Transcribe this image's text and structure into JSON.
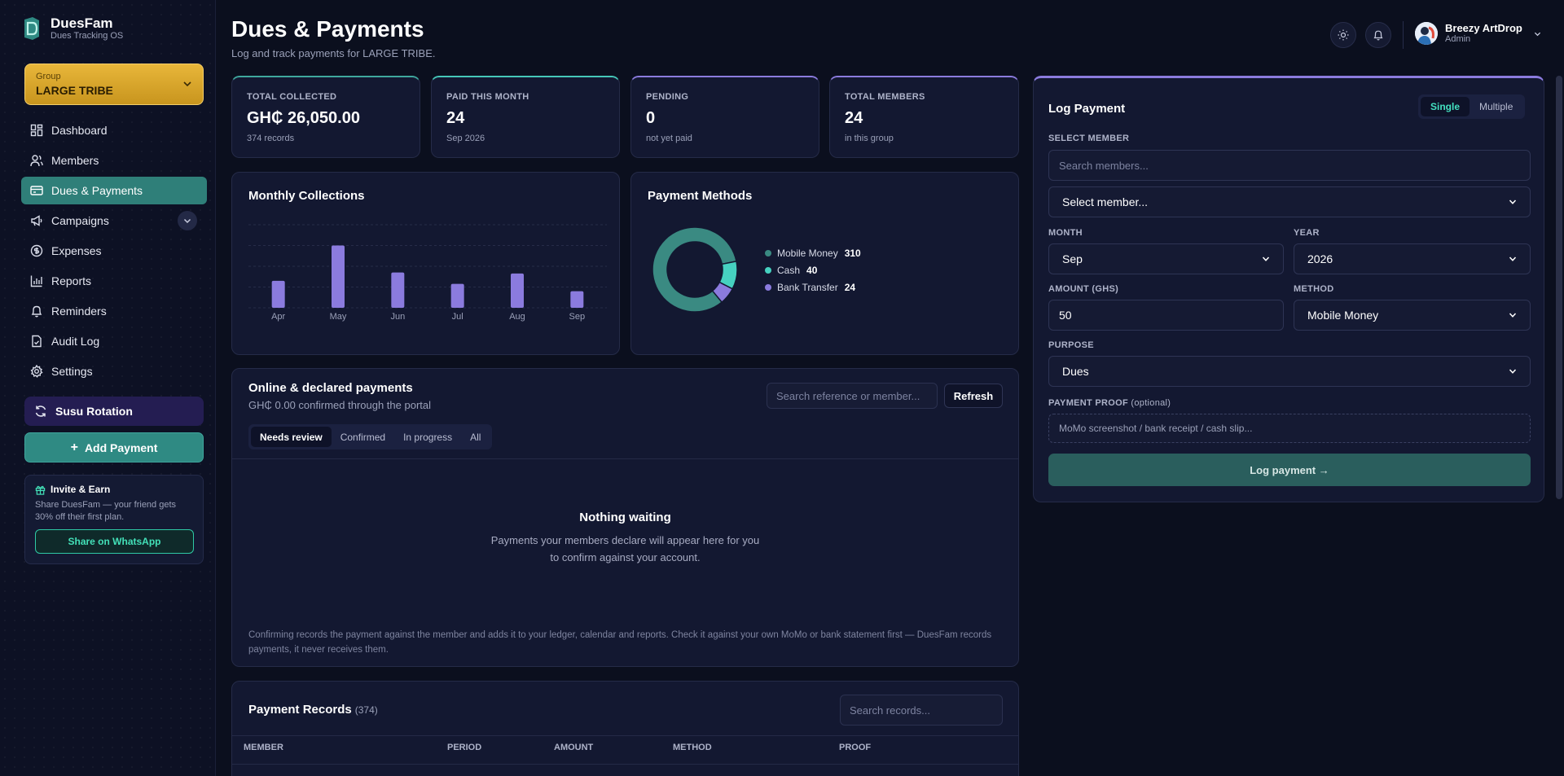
{
  "brand": {
    "name": "DuesFam",
    "sub": "Dues Tracking OS"
  },
  "group": {
    "label": "Group",
    "value": "LARGE TRIBE"
  },
  "nav": [
    {
      "label": "Dashboard",
      "icon": "grid-icon",
      "active": false
    },
    {
      "label": "Members",
      "icon": "users-icon",
      "active": false
    },
    {
      "label": "Dues & Payments",
      "icon": "card-icon",
      "active": true
    },
    {
      "label": "Campaigns",
      "icon": "megaphone-icon",
      "active": false
    },
    {
      "label": "Expenses",
      "icon": "coin-icon",
      "active": false
    },
    {
      "label": "Reports",
      "icon": "bar-chart-icon",
      "active": false
    },
    {
      "label": "Reminders",
      "icon": "bell-icon",
      "active": false
    },
    {
      "label": "Audit Log",
      "icon": "file-check-icon",
      "active": false
    },
    {
      "label": "Settings",
      "icon": "gear-icon",
      "active": false
    }
  ],
  "susu": {
    "label": "Susu Rotation"
  },
  "add_payment": {
    "label": "Add Payment"
  },
  "invite": {
    "title": "Invite & Earn",
    "text": "Share DuesFam — your friend gets 30% off their first plan.",
    "button": "Share on WhatsApp"
  },
  "header": {
    "title": "Dues & Payments",
    "subtitle": "Log and track payments for LARGE TRIBE.",
    "user_name": "Breezy ArtDrop",
    "user_role": "Admin"
  },
  "stats": [
    {
      "label": "TOTAL COLLECTED",
      "value": "GH₵ 26,050.00",
      "sub": "374 records"
    },
    {
      "label": "PAID THIS MONTH",
      "value": "24",
      "sub": "Sep 2026"
    },
    {
      "label": "PENDING",
      "value": "0",
      "sub": "not yet paid"
    },
    {
      "label": "TOTAL MEMBERS",
      "value": "24",
      "sub": "in this group"
    }
  ],
  "monthly": {
    "title": "Monthly Collections"
  },
  "methods": {
    "title": "Payment Methods"
  },
  "chart_data": [
    {
      "type": "bar",
      "categories": [
        "Apr",
        "May",
        "Jun",
        "Jul",
        "Aug",
        "Sep"
      ],
      "values": [
        2600,
        6000,
        3400,
        2300,
        3300,
        1600
      ],
      "ylim": [
        0,
        8000
      ],
      "grid": true,
      "color": "#8b7bde"
    },
    {
      "type": "pie",
      "donut": true,
      "categories": [
        "Mobile Money",
        "Cash",
        "Bank Transfer"
      ],
      "values": [
        310,
        40,
        24
      ],
      "colors": [
        "#3a8a82",
        "#46d1c0",
        "#8b7bde"
      ],
      "legend": "right"
    }
  ],
  "online": {
    "title": "Online & declared payments",
    "subtitle": "GH₵ 0.00 confirmed through the portal",
    "search_placeholder": "Search reference or member...",
    "refresh": "Refresh",
    "tabs": [
      "Needs review",
      "Confirmed",
      "In progress",
      "All"
    ],
    "empty_title": "Nothing waiting",
    "empty_text": "Payments your members declare will appear here for you to confirm against your account.",
    "footnote": "Confirming records the payment against the member and adds it to your ledger, calendar and reports. Check it against your own MoMo or bank statement first — DuesFam records payments, it never receives them."
  },
  "records": {
    "title": "Payment Records",
    "count": "(374)",
    "search_placeholder": "Search records...",
    "columns": [
      "MEMBER",
      "PERIOD",
      "AMOUNT",
      "METHOD",
      "PROOF"
    ]
  },
  "log": {
    "title": "Log Payment",
    "modes": [
      "Single",
      "Multiple"
    ],
    "select_member_label": "SELECT MEMBER",
    "search_placeholder": "Search members...",
    "member_select": "Select member...",
    "month_label": "MONTH",
    "month": "Sep",
    "year_label": "YEAR",
    "year": "2026",
    "amount_label": "AMOUNT (GHS)",
    "amount": "50",
    "method_label": "METHOD",
    "method": "Mobile Money",
    "purpose_label": "PURPOSE",
    "purpose": "Dues",
    "proof_label": "PAYMENT PROOF",
    "proof_optional": "(optional)",
    "proof_placeholder": "MoMo screenshot / bank receipt / cash slip...",
    "submit": "Log payment →"
  }
}
